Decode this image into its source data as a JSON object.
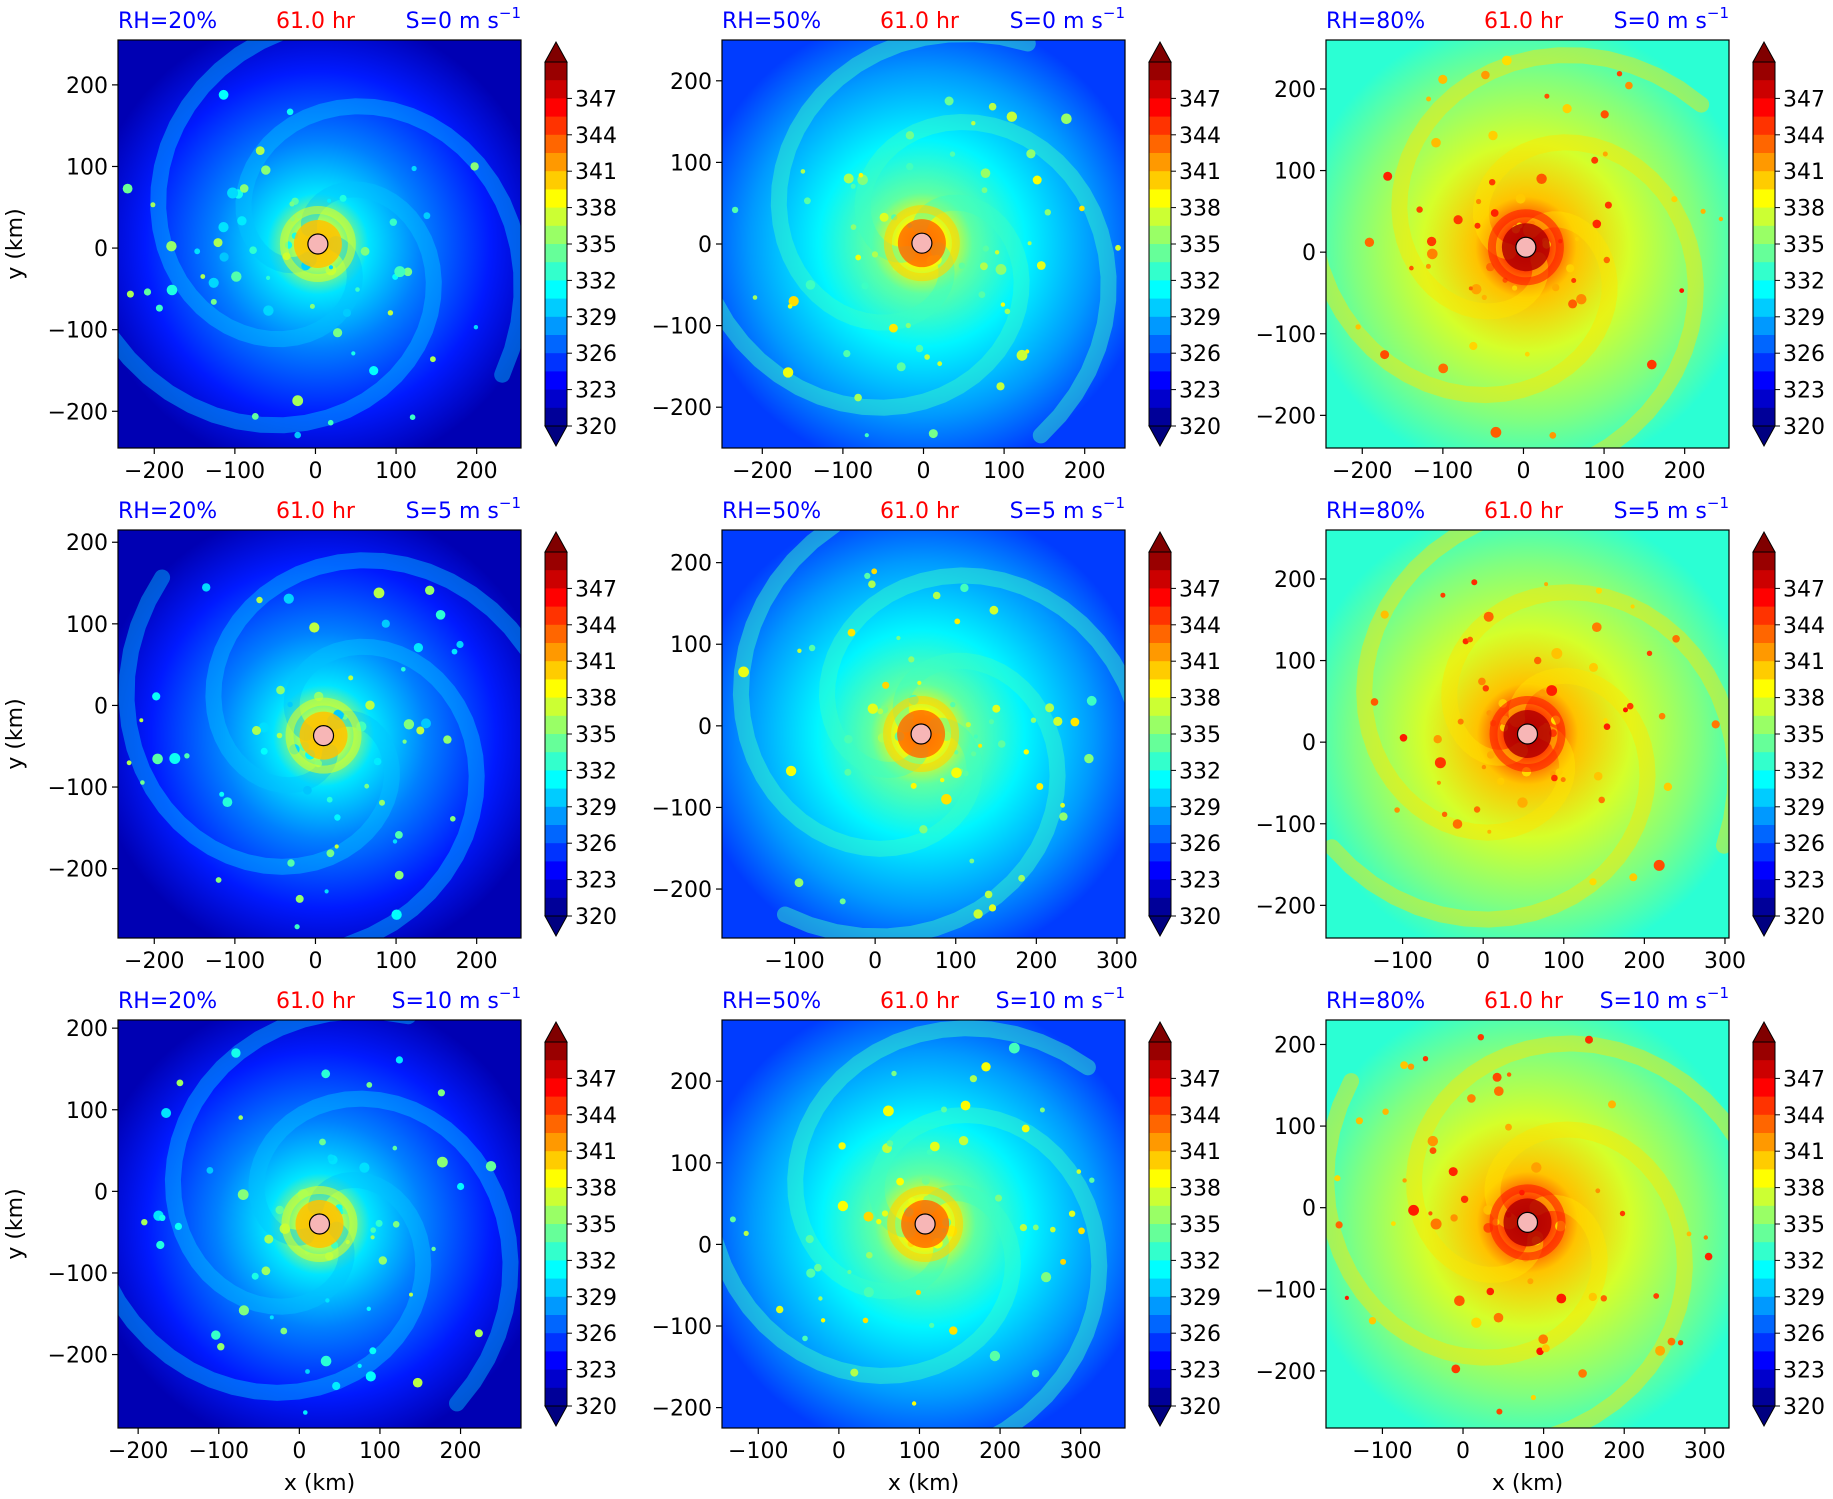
{
  "figure": {
    "x_label": "x (km)",
    "y_label": "y (km)",
    "time_label": "61.0 hr",
    "colorbar_ticks": [
      "347",
      "344",
      "341",
      "338",
      "335",
      "332",
      "329",
      "326",
      "323",
      "320"
    ],
    "colors": {
      "label_blue": "#0000ff",
      "label_red": "#ff0000",
      "center_marker": "#f7b6b6"
    }
  },
  "chart_data": [
    {
      "type": "heatmap",
      "row": 0,
      "col": 0,
      "rh_label": "RH=20%",
      "time_label": "61.0 hr",
      "shear_label": "S=0 m s",
      "shear_exp": "−1",
      "x_range": [
        -245,
        255
      ],
      "y_range": [
        -245,
        255
      ],
      "x_ticks": [
        -200,
        -100,
        0,
        100,
        200
      ],
      "y_ticks": [
        -200,
        -100,
        0,
        100,
        200
      ],
      "center": [
        3,
        5
      ],
      "rh": 20,
      "shear": 0,
      "xlabel": "",
      "ylabel": "y (km)"
    },
    {
      "type": "heatmap",
      "row": 0,
      "col": 1,
      "rh_label": "RH=50%",
      "time_label": "61.0 hr",
      "shear_label": "S=0 m s",
      "shear_exp": "−1",
      "x_range": [
        -250,
        250
      ],
      "y_range": [
        -250,
        250
      ],
      "x_ticks": [
        -200,
        -100,
        0,
        100,
        200
      ],
      "y_ticks": [
        -200,
        -100,
        0,
        100,
        200
      ],
      "center": [
        -2,
        1
      ],
      "rh": 50,
      "shear": 0,
      "xlabel": "",
      "ylabel": ""
    },
    {
      "type": "heatmap",
      "row": 0,
      "col": 2,
      "rh_label": "RH=80%",
      "time_label": "61.0 hr",
      "shear_label": "S=0 m s",
      "shear_exp": "−1",
      "x_range": [
        -245,
        255
      ],
      "y_range": [
        -240,
        260
      ],
      "x_ticks": [
        -200,
        -100,
        0,
        100,
        200
      ],
      "y_ticks": [
        -200,
        -100,
        0,
        100,
        200
      ],
      "center": [
        3,
        6
      ],
      "rh": 80,
      "shear": 0,
      "xlabel": "",
      "ylabel": ""
    },
    {
      "type": "heatmap",
      "row": 1,
      "col": 0,
      "rh_label": "RH=20%",
      "time_label": "61.0 hr",
      "shear_label": "S=5 m s",
      "shear_exp": "−1",
      "x_range": [
        -245,
        255
      ],
      "y_range": [
        -285,
        215
      ],
      "x_ticks": [
        -200,
        -100,
        0,
        100,
        200
      ],
      "y_ticks": [
        -200,
        -100,
        0,
        100,
        200
      ],
      "center": [
        10,
        -37
      ],
      "rh": 20,
      "shear": 5,
      "xlabel": "",
      "ylabel": "y (km)"
    },
    {
      "type": "heatmap",
      "row": 1,
      "col": 1,
      "rh_label": "RH=50%",
      "time_label": "61.0 hr",
      "shear_label": "S=5 m s",
      "shear_exp": "−1",
      "x_range": [
        -190,
        310
      ],
      "y_range": [
        -260,
        240
      ],
      "x_ticks": [
        -100,
        0,
        100,
        200,
        300
      ],
      "y_ticks": [
        -200,
        -100,
        0,
        100,
        200
      ],
      "center": [
        57,
        -10
      ],
      "rh": 50,
      "shear": 5,
      "xlabel": "",
      "ylabel": ""
    },
    {
      "type": "heatmap",
      "row": 1,
      "col": 2,
      "rh_label": "RH=80%",
      "time_label": "61.0 hr",
      "shear_label": "S=5 m s",
      "shear_exp": "−1",
      "x_range": [
        -195,
        305
      ],
      "y_range": [
        -240,
        260
      ],
      "x_ticks": [
        -100,
        0,
        100,
        200,
        300
      ],
      "y_ticks": [
        -200,
        -100,
        0,
        100,
        200
      ],
      "center": [
        55,
        10
      ],
      "rh": 80,
      "shear": 5,
      "xlabel": "",
      "ylabel": ""
    },
    {
      "type": "heatmap",
      "row": 2,
      "col": 0,
      "rh_label": "RH=20%",
      "time_label": "61.0 hr",
      "shear_label": "S=10 m s",
      "shear_exp": "−1",
      "x_range": [
        -225,
        275
      ],
      "y_range": [
        -290,
        210
      ],
      "x_ticks": [
        -200,
        -100,
        0,
        100,
        200
      ],
      "y_ticks": [
        -200,
        -100,
        0,
        100,
        200
      ],
      "center": [
        25,
        -40
      ],
      "rh": 20,
      "shear": 10,
      "xlabel": "x (km)",
      "ylabel": "y (km)"
    },
    {
      "type": "heatmap",
      "row": 2,
      "col": 1,
      "rh_label": "RH=50%",
      "time_label": "61.0 hr",
      "shear_label": "S=10 m s",
      "shear_exp": "−1",
      "x_range": [
        -145,
        355
      ],
      "y_range": [
        -225,
        275
      ],
      "x_ticks": [
        -100,
        0,
        100,
        200,
        300
      ],
      "y_ticks": [
        -200,
        -100,
        0,
        100,
        200
      ],
      "center": [
        107,
        25
      ],
      "rh": 50,
      "shear": 10,
      "xlabel": "x (km)",
      "ylabel": ""
    },
    {
      "type": "heatmap",
      "row": 2,
      "col": 2,
      "rh_label": "RH=80%",
      "time_label": "61.0 hr",
      "shear_label": "S=10 m s",
      "shear_exp": "−1",
      "x_range": [
        -170,
        330
      ],
      "y_range": [
        -270,
        230
      ],
      "x_ticks": [
        -100,
        0,
        100,
        200,
        300
      ],
      "y_ticks": [
        -200,
        -100,
        0,
        100,
        200
      ],
      "center": [
        80,
        -18
      ],
      "rh": 80,
      "shear": 10,
      "xlabel": "x (km)",
      "ylabel": ""
    }
  ]
}
